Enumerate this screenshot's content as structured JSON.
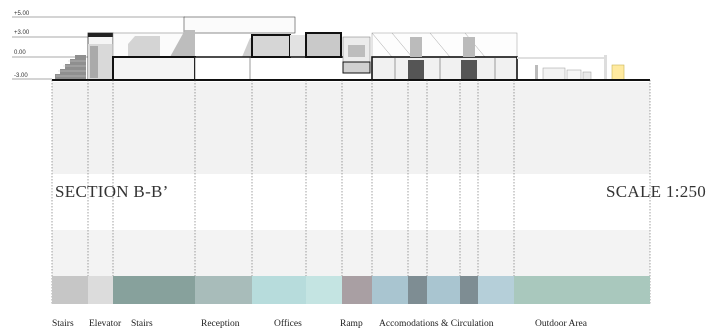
{
  "title": "SECTION B-B’",
  "scale": "SCALE 1:250",
  "levels": [
    "+5.00",
    "+3.00",
    "0.00",
    "-3.00"
  ],
  "zones": [
    {
      "label": "Stairs",
      "color": "#c6c6c6"
    },
    {
      "label": "Elevator",
      "color": "#dcdcdc"
    },
    {
      "label": "Stairs",
      "color": "#87a19c"
    },
    {
      "label": "Reception",
      "color": "#a8bcba"
    },
    {
      "label": "Offices",
      "color": "#b7dcdc"
    },
    {
      "label": "Ramp",
      "color": "#a99fa3"
    },
    {
      "label": "Accomodations & Circulation",
      "color": "#a9c5d0"
    },
    {
      "label": "Outdoor Area",
      "color": "#a9c8bd"
    }
  ],
  "accommodation_sub_colors": [
    "#a9c5d0",
    "#7e8d93",
    "#a9c5d0",
    "#b5cfd9",
    "#7e8d93",
    "#b5cfd9"
  ]
}
